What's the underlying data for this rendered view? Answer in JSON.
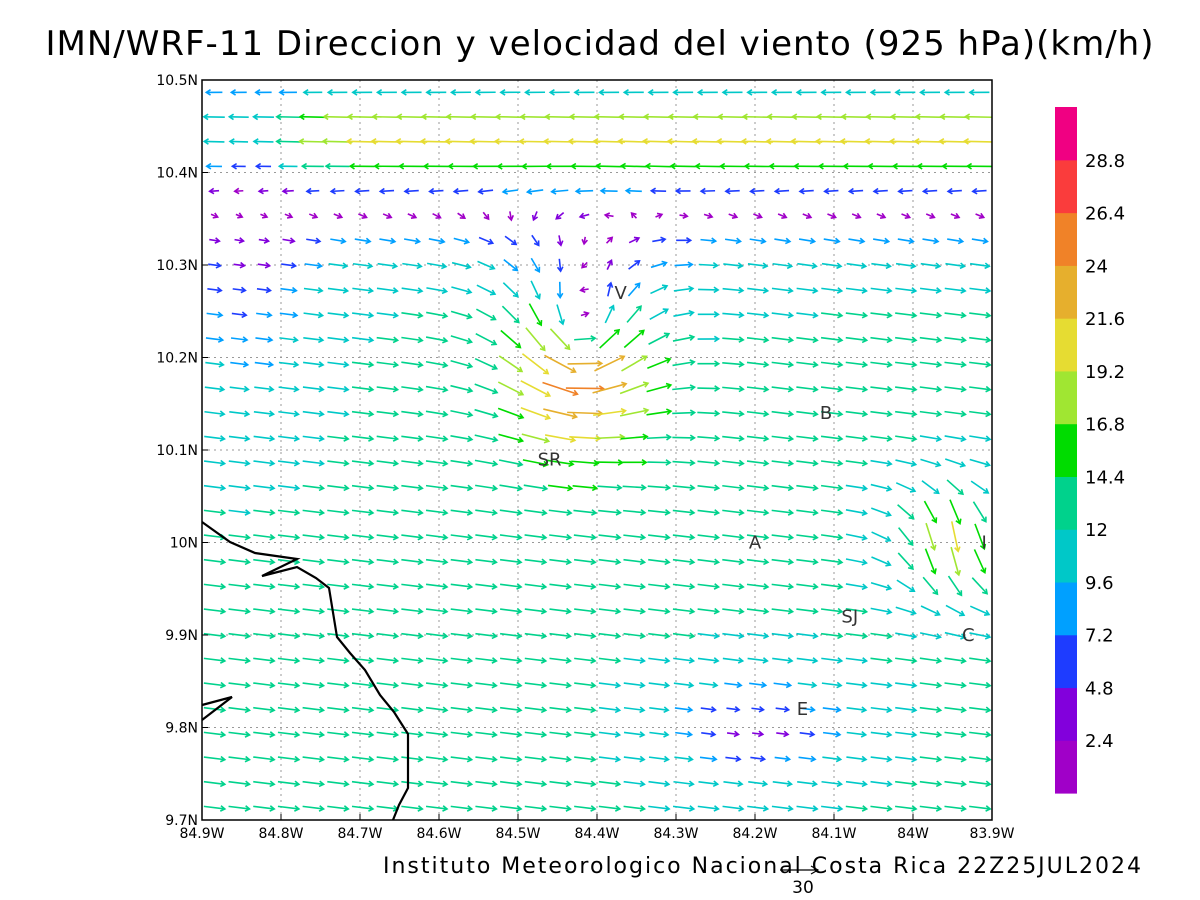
{
  "title": "IMN/WRF-11 Direccion y velocidad del viento (925 hPa)(km/h)",
  "footer": "Instituto Meteorologico Nacional Costa Rica 22Z25JUL2024",
  "reference_vector": {
    "label": "30",
    "speed": 30,
    "unit": "km/h"
  },
  "axes": {
    "x_ticks": [
      "84.9W",
      "84.8W",
      "84.7W",
      "84.6W",
      "84.5W",
      "84.4W",
      "84.3W",
      "84.2W",
      "84.1W",
      "84W",
      "83.9W"
    ],
    "y_ticks": [
      "10.5N",
      "10.4N",
      "10.3N",
      "10.2N",
      "10.1N",
      "10N",
      "9.9N",
      "9.8N",
      "9.7N"
    ],
    "lon_range": [
      -84.9,
      -83.9
    ],
    "lat_range": [
      9.7,
      10.5
    ],
    "grid": true
  },
  "stations": [
    {
      "code": "V",
      "lon": -84.37,
      "lat": 10.27
    },
    {
      "code": "B",
      "lon": -84.11,
      "lat": 10.14
    },
    {
      "code": "SR",
      "lon": -84.46,
      "lat": 10.09
    },
    {
      "code": "A",
      "lon": -84.2,
      "lat": 10.0
    },
    {
      "code": "I",
      "lon": -83.91,
      "lat": 10.0
    },
    {
      "code": "SJ",
      "lon": -84.08,
      "lat": 9.92
    },
    {
      "code": "C",
      "lon": -83.93,
      "lat": 9.9
    },
    {
      "code": "E",
      "lon": -84.14,
      "lat": 9.82
    }
  ],
  "colorbar": {
    "levels": [
      "2.4",
      "4.8",
      "7.2",
      "9.6",
      "12",
      "14.4",
      "16.8",
      "19.2",
      "21.6",
      "24",
      "26.4",
      "28.8"
    ],
    "colors": [
      "#a000c8",
      "#8200dc",
      "#1e3cff",
      "#00a0ff",
      "#00c8c8",
      "#00d28c",
      "#00dc00",
      "#a0e632",
      "#e6dc32",
      "#e6af2d",
      "#f08228",
      "#fa3c3c",
      "#f00082"
    ]
  },
  "coastline_color": "#000000",
  "grid_color": "#999999"
}
